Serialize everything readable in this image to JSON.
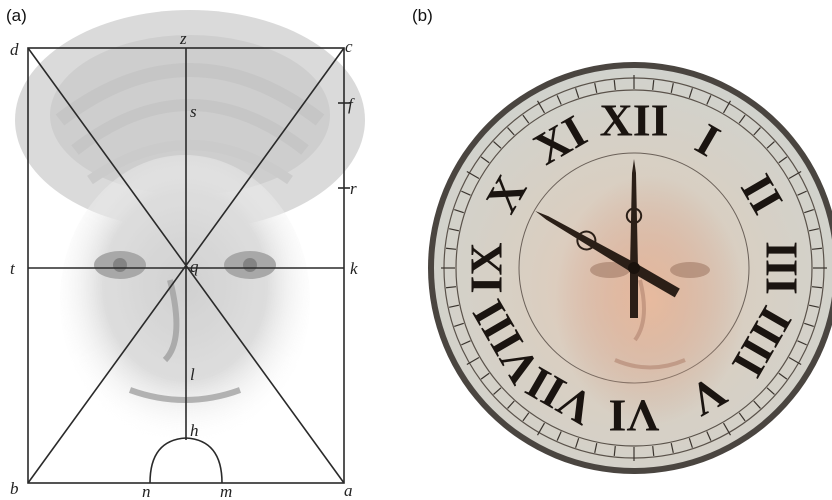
{
  "panels": {
    "a": {
      "label": "(a)",
      "points": {
        "d": "d",
        "z": "z",
        "c": "c",
        "s": "s",
        "f": "f",
        "r": "r",
        "t": "t",
        "q": "q",
        "k": "k",
        "l": "l",
        "h": "h",
        "b": "b",
        "n": "n",
        "m": "m",
        "a": "a"
      },
      "background_icon": "turbaned-face-portrait"
    },
    "b": {
      "label": "(b)",
      "clock": {
        "numerals": [
          "XII",
          "I",
          "II",
          "III",
          "IIII",
          "V",
          "VI",
          "VII",
          "VIII",
          "IX",
          "X",
          "XI"
        ],
        "time": {
          "hour": 10,
          "minute": 0
        },
        "background_icon": "face-portrait"
      }
    }
  }
}
